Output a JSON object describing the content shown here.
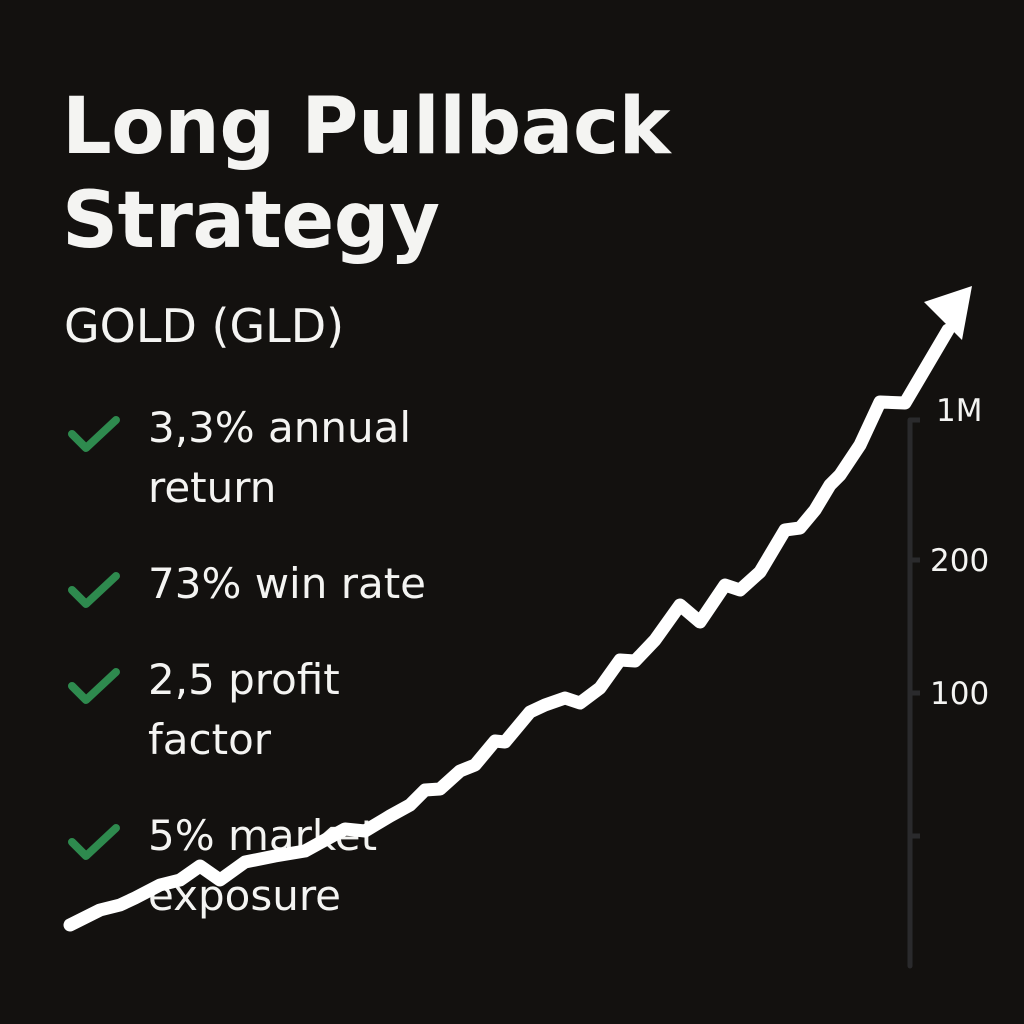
{
  "title": "Long Pullback Strategy",
  "subtitle": "GOLD (GLD)",
  "bullets": [
    {
      "icon": "check-icon",
      "text": "3,3% annual return"
    },
    {
      "icon": "check-icon",
      "text": "73% win rate"
    },
    {
      "icon": "check-icon",
      "text": "2,5 profit factor"
    },
    {
      "icon": "check-icon",
      "text": "5% market exposure"
    }
  ],
  "colors": {
    "background": "#13110f",
    "text": "#f4f4f2",
    "check": "#2e8a4e",
    "line": "#ffffff",
    "axis": "#2a2a2c"
  },
  "chart_data": {
    "type": "line",
    "title": "",
    "xlabel": "",
    "ylabel": "",
    "ytick_labels": [
      "1M",
      "200",
      "100",
      ""
    ],
    "trend": "rising, ending in an arrow",
    "grid": false,
    "legend": "none"
  }
}
